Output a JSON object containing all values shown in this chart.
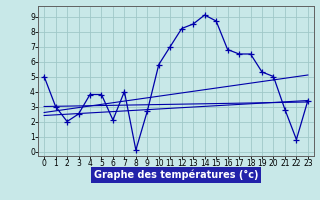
{
  "xlabel": "Graphe des températures (°c)",
  "bg_color": "#c8e8e8",
  "grid_color": "#a0c8c8",
  "line_color": "#0000aa",
  "xlim": [
    -0.5,
    23.5
  ],
  "ylim": [
    -0.3,
    9.7
  ],
  "xticks": [
    0,
    1,
    2,
    3,
    4,
    5,
    6,
    7,
    8,
    9,
    10,
    11,
    12,
    13,
    14,
    15,
    16,
    17,
    18,
    19,
    20,
    21,
    22,
    23
  ],
  "yticks": [
    0,
    1,
    2,
    3,
    4,
    5,
    6,
    7,
    8,
    9
  ],
  "main_x": [
    0,
    1,
    2,
    3,
    4,
    5,
    6,
    7,
    8,
    9,
    10,
    11,
    12,
    13,
    14,
    15,
    16,
    17,
    18,
    19,
    20,
    21,
    22,
    23
  ],
  "main_y": [
    5.0,
    3.0,
    2.0,
    2.5,
    3.8,
    3.8,
    2.1,
    4.0,
    0.1,
    2.7,
    5.8,
    7.0,
    8.2,
    8.5,
    9.1,
    8.7,
    6.8,
    6.5,
    6.5,
    5.3,
    5.0,
    2.8,
    0.8,
    3.4
  ],
  "trend1_x": [
    0,
    23
  ],
  "trend1_y": [
    3.0,
    3.3
  ],
  "trend2_x": [
    0,
    23
  ],
  "trend2_y": [
    2.6,
    5.1
  ],
  "trend3_x": [
    0,
    23
  ],
  "trend3_y": [
    2.4,
    3.4
  ],
  "tick_fontsize": 5.5,
  "xlabel_fontsize": 7.0
}
